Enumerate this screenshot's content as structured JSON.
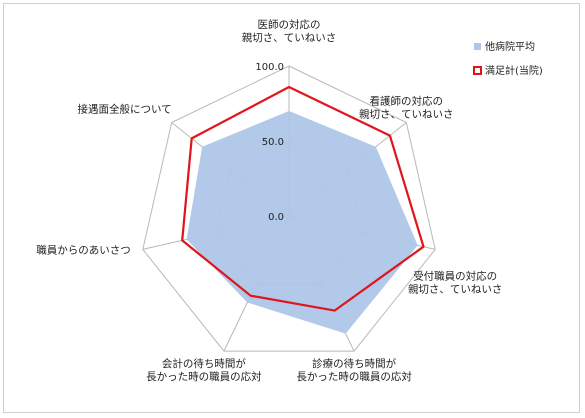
{
  "chart_data": {
    "type": "radar",
    "title": "",
    "range": [
      0,
      100
    ],
    "ticks": [
      "0.0",
      "50.0",
      "100.0"
    ],
    "categories": [
      [
        "医師の対応の",
        "親切さ、ていねいさ"
      ],
      [
        "看護師の対応の",
        "親切さ、ていねいさ"
      ],
      [
        "受付職員の対応の",
        "親切さ、ていねいさ"
      ],
      [
        "診療の待ち時間が",
        "長かった時の職員の応対"
      ],
      [
        "会計の待ち時間が",
        "長かった時の職員の応対"
      ],
      [
        "職員からのあいさつ"
      ],
      [
        "接遇面全般について"
      ]
    ],
    "series": [
      {
        "name": "他病院平均",
        "values": [
          70,
          74,
          88,
          87,
          64,
          70,
          74
        ],
        "color": "#aec6e8",
        "style": "area"
      },
      {
        "name": "満足計(当院)",
        "values": [
          86,
          86,
          92,
          70,
          59,
          73,
          83
        ],
        "color": "#e0151c",
        "style": "line"
      }
    ],
    "grid_color": "#b8b8b8",
    "legend_position": "top-right"
  }
}
